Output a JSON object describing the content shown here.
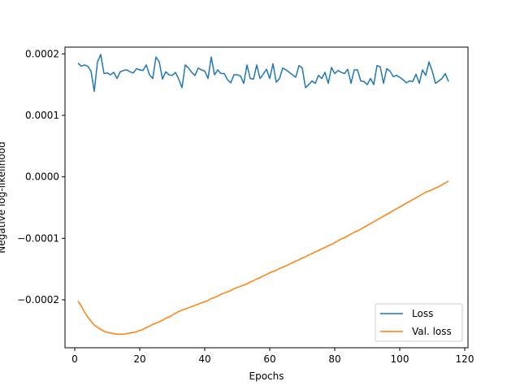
{
  "chart_data": {
    "type": "line",
    "title": "",
    "xlabel": "Epochs",
    "ylabel": "Negative log-likelihood",
    "xlim": [
      -3,
      121
    ],
    "ylim": [
      -0.000278,
      0.000211
    ],
    "xticks": [
      0,
      20,
      40,
      60,
      80,
      100,
      120
    ],
    "yticks": [
      -0.0002,
      -0.0001,
      0.0,
      0.0001,
      0.0002
    ],
    "xtick_labels": [
      "0",
      "20",
      "40",
      "60",
      "80",
      "100",
      "120"
    ],
    "ytick_labels": [
      "−0.0002",
      "−0.0001",
      "0.0000",
      "0.0001",
      "0.0002"
    ],
    "grid": false,
    "legend_position": "lower-right",
    "series": [
      {
        "name": "Loss",
        "color": "#1f77b4",
        "x_start": 1,
        "x_step": 1,
        "values": [
          0.000185,
          0.00018,
          0.000182,
          0.00018,
          0.000172,
          0.000139,
          0.000187,
          0.000199,
          0.000168,
          0.000169,
          0.000166,
          0.00017,
          0.00016,
          0.000171,
          0.000173,
          0.000174,
          0.000171,
          0.000169,
          0.000176,
          0.000174,
          0.000173,
          0.000182,
          0.000166,
          0.00016,
          0.000195,
          0.000187,
          0.000159,
          0.000171,
          0.000166,
          0.000165,
          0.00017,
          0.000159,
          0.000145,
          0.000182,
          0.000177,
          0.00017,
          0.000165,
          0.000177,
          0.000174,
          0.000172,
          0.00016,
          0.000195,
          0.000166,
          0.000174,
          0.000168,
          0.000168,
          0.000158,
          0.000153,
          0.000166,
          0.000166,
          0.000164,
          0.000152,
          0.000182,
          0.00016,
          0.000159,
          0.000182,
          0.00016,
          0.000167,
          0.000175,
          0.00016,
          0.000184,
          0.000154,
          0.00016,
          0.000177,
          0.000174,
          0.00017,
          0.000166,
          0.000162,
          0.000181,
          0.000177,
          0.000145,
          0.00015,
          0.000156,
          0.000152,
          0.000165,
          0.00016,
          0.00017,
          0.000152,
          0.000178,
          0.000168,
          0.000173,
          0.00017,
          0.000168,
          0.000175,
          0.000152,
          0.000174,
          0.000174,
          0.000156,
          0.000155,
          0.00015,
          0.00016,
          0.00015,
          0.000181,
          0.000179,
          0.000152,
          0.000176,
          0.000172,
          0.000163,
          0.000165,
          0.000162,
          0.000158,
          0.000153,
          0.000156,
          0.000155,
          0.000167,
          0.000152,
          0.000174,
          0.000165,
          0.000187,
          0.000172,
          0.000152,
          0.000156,
          0.00016,
          0.000168,
          0.000155
        ]
      },
      {
        "name": "Val. loss",
        "color": "#ff7f0e",
        "x_start": 1,
        "x_step": 1,
        "values": [
          -0.000202,
          -0.00021,
          -0.00022,
          -0.000228,
          -0.000235,
          -0.000241,
          -0.000245,
          -0.000248,
          -0.000251,
          -0.000253,
          -0.000254,
          -0.000255,
          -0.000256,
          -0.000256,
          -0.000256,
          -0.000255,
          -0.000254,
          -0.000253,
          -0.000252,
          -0.00025,
          -0.000248,
          -0.000245,
          -0.000243,
          -0.00024,
          -0.000238,
          -0.000236,
          -0.000233,
          -0.00023,
          -0.000228,
          -0.000225,
          -0.000222,
          -0.000219,
          -0.000217,
          -0.000215,
          -0.000213,
          -0.000211,
          -0.000209,
          -0.000207,
          -0.000205,
          -0.000203,
          -0.000201,
          -0.000198,
          -0.000196,
          -0.000194,
          -0.000191,
          -0.000189,
          -0.000187,
          -0.000185,
          -0.000182,
          -0.00018,
          -0.000178,
          -0.000176,
          -0.000174,
          -0.000171,
          -0.000169,
          -0.000166,
          -0.000164,
          -0.000161,
          -0.000159,
          -0.000156,
          -0.000154,
          -0.000152,
          -0.000149,
          -0.000147,
          -0.000145,
          -0.000142,
          -0.00014,
          -0.000137,
          -0.000135,
          -0.000132,
          -0.00013,
          -0.000127,
          -0.000125,
          -0.000122,
          -0.00012,
          -0.000117,
          -0.000115,
          -0.000112,
          -0.00011,
          -0.000107,
          -0.000104,
          -0.000101,
          -9.9e-05,
          -9.6e-05,
          -9.3e-05,
          -9e-05,
          -8.8e-05,
          -8.5e-05,
          -8.2e-05,
          -7.9e-05,
          -7.6e-05,
          -7.3e-05,
          -7e-05,
          -6.7e-05,
          -6.4e-05,
          -6.1e-05,
          -5.8e-05,
          -5.5e-05,
          -5.2e-05,
          -4.9e-05,
          -4.6e-05,
          -4.3e-05,
          -4e-05,
          -3.7e-05,
          -3.4e-05,
          -3.1e-05,
          -2.8e-05,
          -2.5e-05,
          -2.3e-05,
          -2.1e-05,
          -1.8e-05,
          -1.6e-05,
          -1.3e-05,
          -1e-05,
          -7e-06
        ]
      }
    ]
  }
}
